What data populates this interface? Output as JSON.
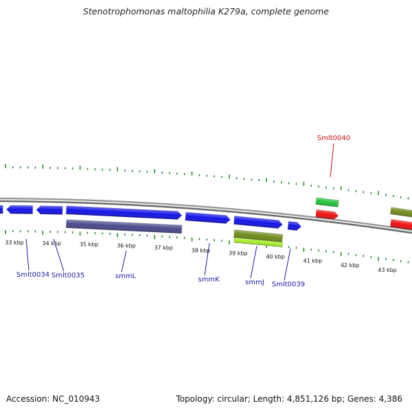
{
  "title": "Stenotrophomonas maltophilia K279a, complete genome",
  "footer": {
    "accession": "Accession: NC_010943",
    "summary": "Topology: circular; Length: 4,851,126 bp; Genes: 4,386"
  },
  "colors": {
    "forward_cds": "#1414e6",
    "reverse_cds": "#4a4a8c",
    "highlight_green": "#22c23a",
    "highlight_red": "#ee1111",
    "olive": "#6f8a1c",
    "lime": "#a6ee2a",
    "tick": "#2e8b2e",
    "label_blue": "#1a1aa8",
    "label_red": "#cc1111"
  },
  "axis": {
    "unit": "kbp",
    "ticks": [
      "33 kbp",
      "34 kbp",
      "35 kbp",
      "36 kbp",
      "37 kbp",
      "38 kbp",
      "39 kbp",
      "40 kbp",
      "41 kbp",
      "42 kbp",
      "43 kbp"
    ]
  },
  "features": [
    {
      "name": "f1",
      "track": "forward",
      "start_kbp": 32.5,
      "end_kbp": 32.8,
      "color": "#1414e6"
    },
    {
      "name": "f2",
      "track": "forward",
      "start_kbp": 32.9,
      "end_kbp": 33.6,
      "color": "#1414e6"
    },
    {
      "name": "f3",
      "track": "forward",
      "start_kbp": 33.7,
      "end_kbp": 34.4,
      "color": "#1414e6"
    },
    {
      "name": "f4",
      "track": "forward",
      "start_kbp": 34.5,
      "end_kbp": 37.6,
      "color": "#1414e6"
    },
    {
      "name": "f5",
      "track": "forward",
      "start_kbp": 37.7,
      "end_kbp": 38.9,
      "color": "#1414e6"
    },
    {
      "name": "f6",
      "track": "forward",
      "start_kbp": 39.0,
      "end_kbp": 40.3,
      "color": "#1414e6"
    },
    {
      "name": "f7",
      "track": "forward",
      "start_kbp": 40.45,
      "end_kbp": 40.8,
      "color": "#1414e6"
    },
    {
      "name": "f8",
      "track": "reverse",
      "start_kbp": 34.5,
      "end_kbp": 37.6,
      "color": "#4a4a8c"
    },
    {
      "name": "f9",
      "track": "reverse",
      "start_kbp": 39.0,
      "end_kbp": 40.3,
      "color": "#6f8a1c"
    },
    {
      "name": "f10",
      "track": "reverse_outer",
      "start_kbp": 39.0,
      "end_kbp": 40.3,
      "color": "#a6ee2a"
    },
    {
      "name": "f11",
      "track": "upper2",
      "start_kbp": 41.2,
      "end_kbp": 41.8,
      "color": "#22c23a"
    },
    {
      "name": "f12",
      "track": "upper1",
      "start_kbp": 41.2,
      "end_kbp": 41.8,
      "color": "#ee1111"
    },
    {
      "name": "f13",
      "track": "upper2",
      "start_kbp": 43.2,
      "end_kbp": 44.0,
      "color": "#6f8a1c"
    },
    {
      "name": "f14",
      "track": "upper1",
      "start_kbp": 43.2,
      "end_kbp": 44.0,
      "color": "#ee1111"
    }
  ],
  "gene_labels": [
    {
      "text": "Smlt0034",
      "color": "#1a1aa8"
    },
    {
      "text": "Smlt0035",
      "color": "#1a1aa8"
    },
    {
      "text": "smmL",
      "color": "#1a1aa8"
    },
    {
      "text": "smmK",
      "color": "#1a1aa8"
    },
    {
      "text": "smmJ",
      "color": "#1a1aa8"
    },
    {
      "text": "Smlt0039",
      "color": "#1a1aa8"
    },
    {
      "text": "Smlt0040",
      "color": "#cc1111"
    }
  ]
}
